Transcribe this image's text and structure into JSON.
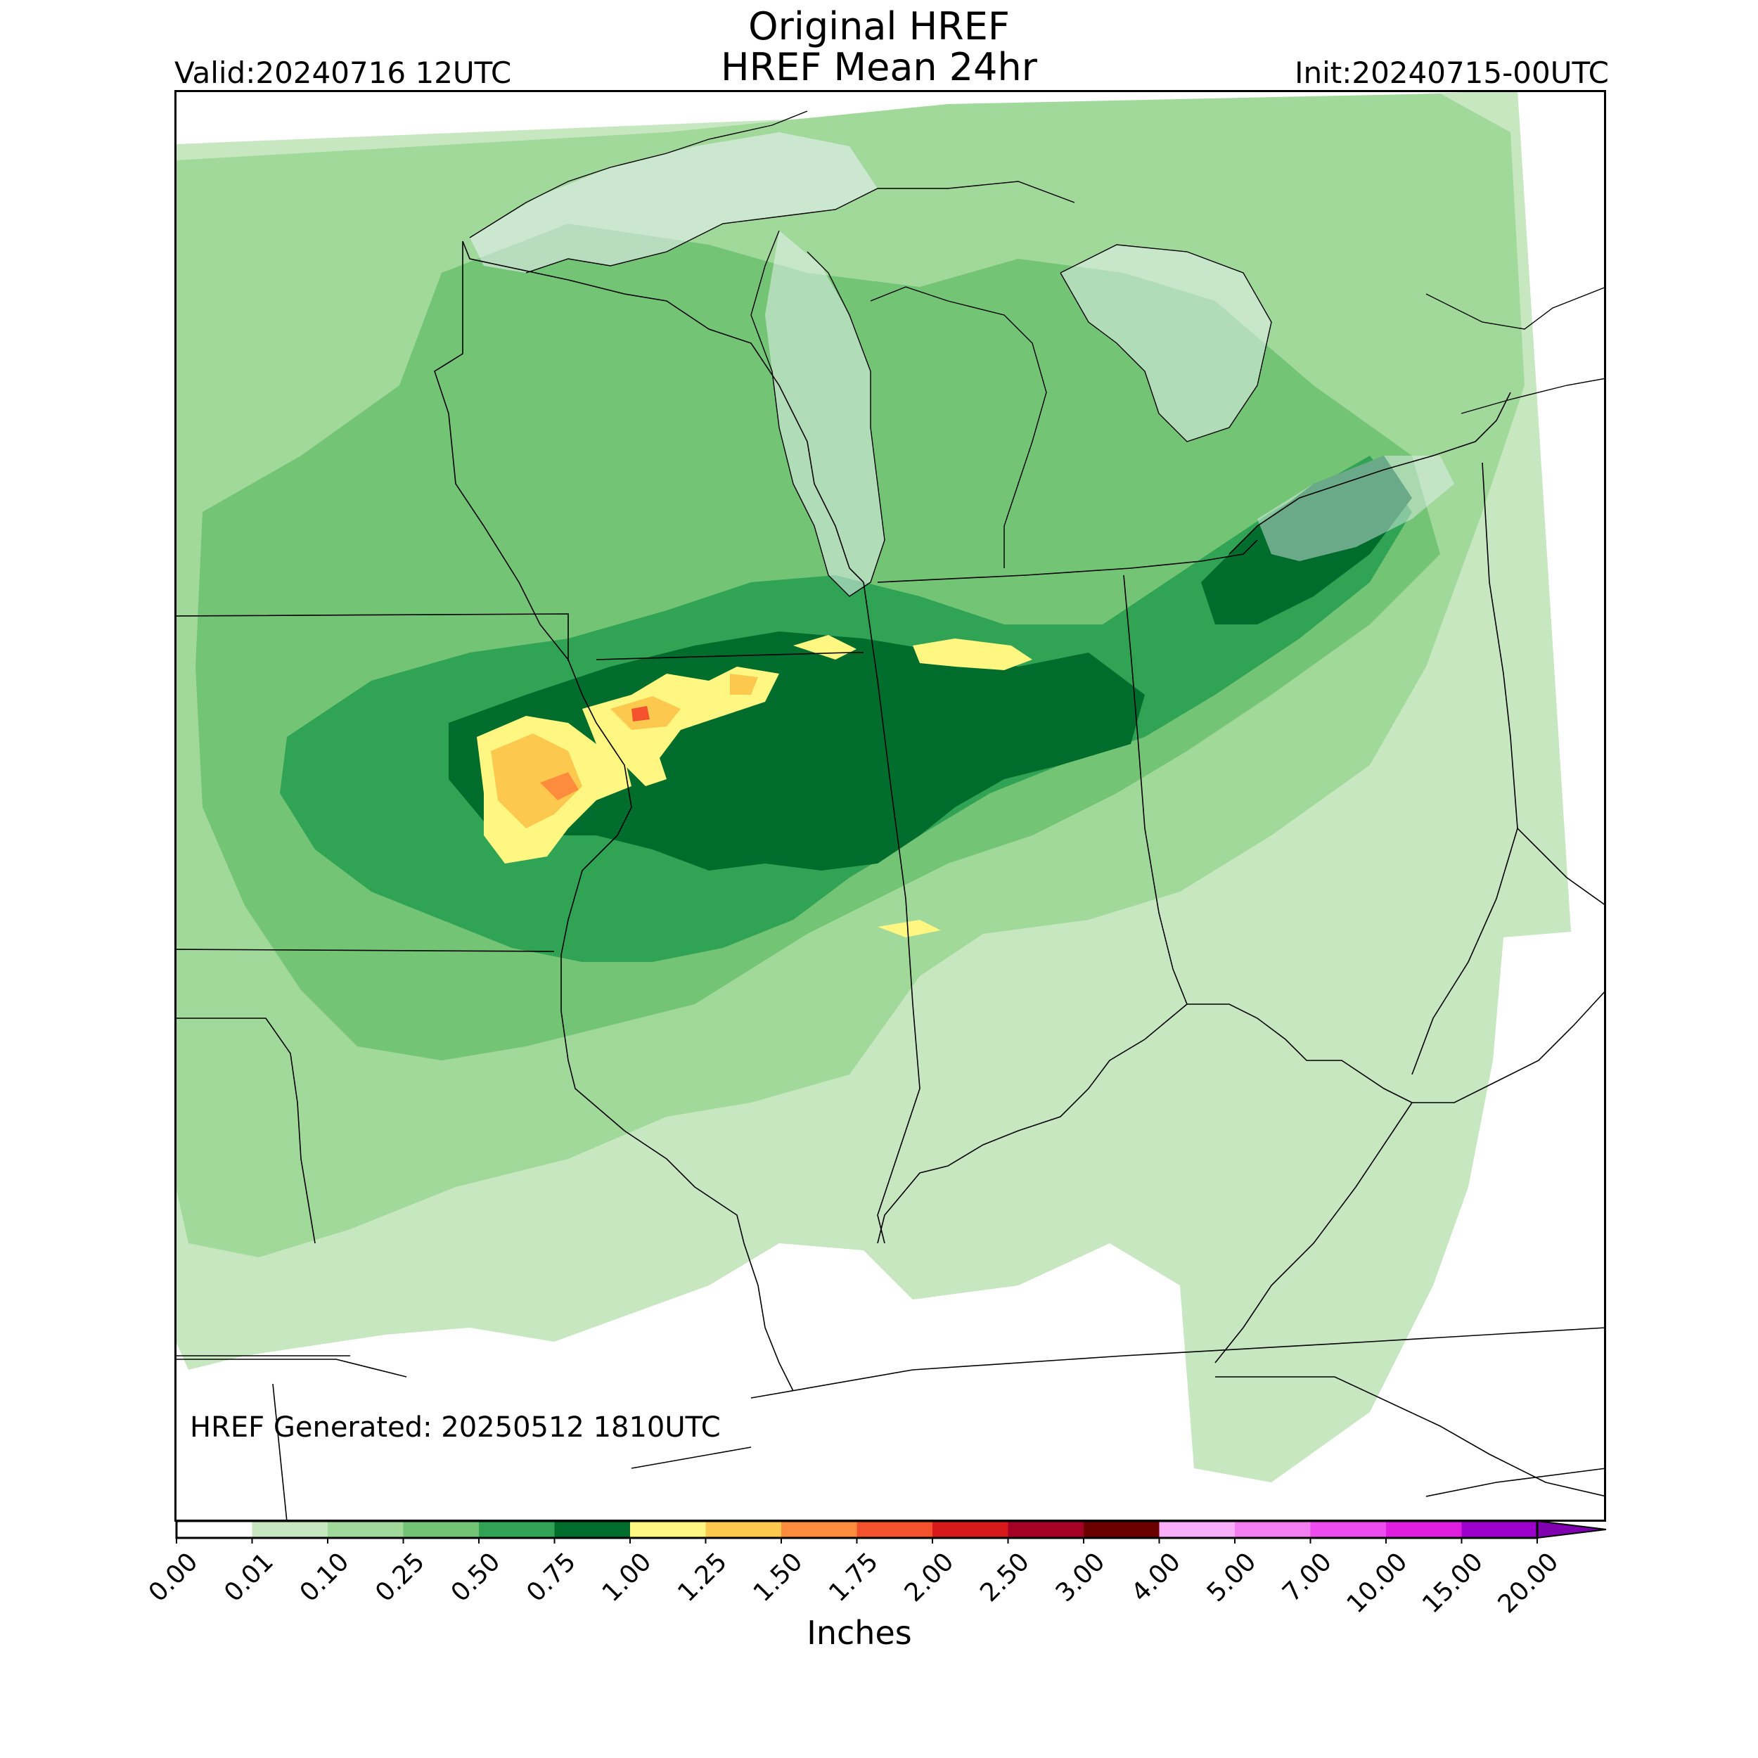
{
  "header": {
    "title_line1": "Original HREF",
    "title_line2": "HREF Mean 24hr",
    "valid_label": "Valid:20240716 12UTC",
    "init_label": "Init:20240715-00UTC"
  },
  "footer": {
    "generated_label": "HREF Generated: 20250512 1810UTC"
  },
  "colorbar": {
    "units_label": "Inches",
    "bins": [
      {
        "label": "0.00",
        "color": "#ffffff"
      },
      {
        "label": "0.01",
        "color": "#c7e7c0"
      },
      {
        "label": "0.10",
        "color": "#a1d99b"
      },
      {
        "label": "0.25",
        "color": "#74c476"
      },
      {
        "label": "0.50",
        "color": "#31a354"
      },
      {
        "label": "0.75",
        "color": "#006d2c"
      },
      {
        "label": "1.00",
        "color": "#fff782"
      },
      {
        "label": "1.25",
        "color": "#fdc84e"
      },
      {
        "label": "1.50",
        "color": "#fd8d3c"
      },
      {
        "label": "1.75",
        "color": "#f3522c"
      },
      {
        "label": "2.00",
        "color": "#d7191c"
      },
      {
        "label": "2.50",
        "color": "#a50026"
      },
      {
        "label": "3.00",
        "color": "#6a0000"
      },
      {
        "label": "4.00",
        "color": "#f8aef8"
      },
      {
        "label": "5.00",
        "color": "#f27ef2"
      },
      {
        "label": "7.00",
        "color": "#ee4cee"
      },
      {
        "label": "10.00",
        "color": "#e01ee0"
      },
      {
        "label": "15.00",
        "color": "#9d00cc"
      }
    ],
    "max_label": "20.00",
    "extend": "max"
  },
  "map": {
    "region": "Upper Midwest / Great Lakes",
    "field": "24-hr ensemble mean precipitation",
    "lake_color": "#eef3f9"
  }
}
